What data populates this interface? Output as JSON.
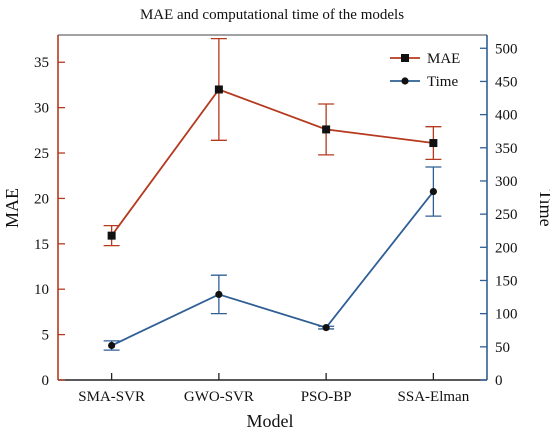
{
  "chart_data": {
    "type": "line",
    "title": "MAE and computational time of the models",
    "xlabel": "Model",
    "ylabel_left": "MAE",
    "ylabel_right": "Time",
    "categories": [
      "SMA-SVR",
      "GWO-SVR",
      "PSO-BP",
      "SSA-Elman"
    ],
    "ylim_left": [
      0,
      38
    ],
    "ylim_right": [
      0,
      520
    ],
    "yticks_left": [
      0,
      5,
      10,
      15,
      20,
      25,
      30,
      35
    ],
    "yticks_right": [
      0,
      50,
      100,
      150,
      200,
      250,
      300,
      350,
      400,
      450,
      500
    ],
    "legend_position": "top-right",
    "grid": false,
    "series": [
      {
        "name": "MAE",
        "axis": "left",
        "color": "#b53a1f",
        "marker": "square",
        "values": [
          15.9,
          32.0,
          27.6,
          26.1
        ],
        "error": [
          1.1,
          5.6,
          2.8,
          1.8
        ]
      },
      {
        "name": "Time",
        "axis": "right",
        "color": "#2f5f95",
        "marker": "circle",
        "values": [
          52,
          129,
          79,
          284
        ],
        "error": [
          7,
          29,
          2,
          37
        ]
      }
    ]
  }
}
